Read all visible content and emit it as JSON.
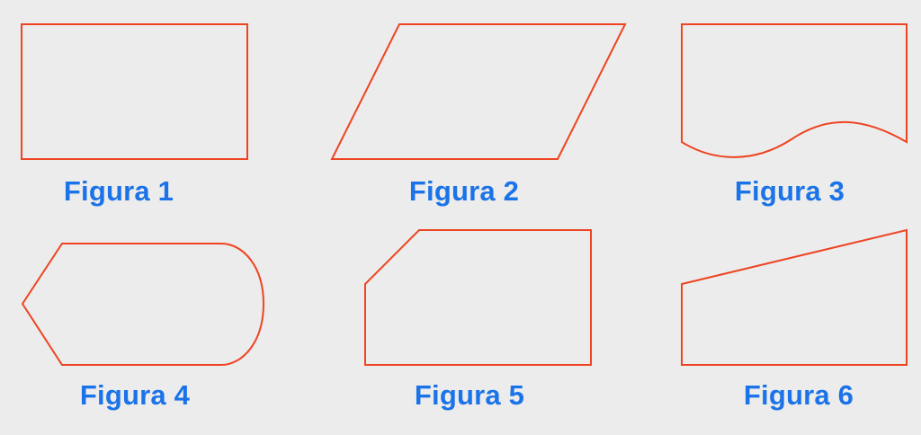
{
  "colors": {
    "background": "#ececec",
    "shape_stroke": "#ee4422",
    "caption_text": "#1a73e8"
  },
  "figures": [
    {
      "label": "Figura 1",
      "shape": "rectangle"
    },
    {
      "label": "Figura 2",
      "shape": "parallelogram"
    },
    {
      "label": "Figura 3",
      "shape": "document"
    },
    {
      "label": "Figura 4",
      "shape": "display"
    },
    {
      "label": "Figura 5",
      "shape": "punched-card"
    },
    {
      "label": "Figura 6",
      "shape": "manual-input"
    }
  ]
}
